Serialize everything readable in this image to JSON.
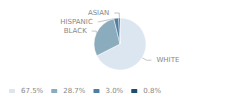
{
  "chart_data": {
    "type": "pie",
    "categories": [
      "WHITE",
      "BLACK",
      "HISPANIC",
      "ASIAN"
    ],
    "values": [
      67.5,
      28.7,
      3.0,
      0.8
    ],
    "value_labels": [
      "67.5%",
      "28.7%",
      "3.0%",
      "0.8%"
    ],
    "colors": [
      "#dce6f0",
      "#8bacbd",
      "#4e7fa0",
      "#1c4f6b"
    ],
    "legend": "lower left"
  }
}
